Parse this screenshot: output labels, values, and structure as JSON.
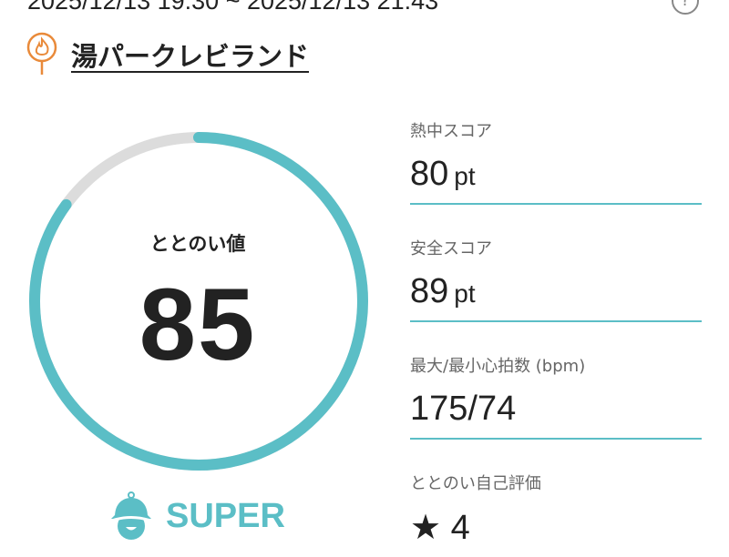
{
  "header": {
    "date_range": "2025/12/13 19:30 ~ 2025/12/13 21:43",
    "help_icon": "question-circle-icon"
  },
  "facility": {
    "name": "湯パークレビランド",
    "icon": "fire-pin-icon",
    "icon_color": "#e98a3a"
  },
  "gauge": {
    "label": "ととのい値",
    "value": "85",
    "percent": 85,
    "color": "#5bbec6",
    "track_color": "#dcdcdc"
  },
  "rank": {
    "label": "SUPER",
    "icon": "sauna-hat-icon",
    "color": "#5bbec6"
  },
  "stats": [
    {
      "label": "熱中スコア",
      "value": "80",
      "unit": "pt"
    },
    {
      "label": "安全スコア",
      "value": "89",
      "unit": "pt"
    },
    {
      "label": "最大/最小心拍数 (bpm)",
      "value": "175/74",
      "unit": ""
    },
    {
      "label": "ととのい自己評価",
      "value": "★ 4",
      "unit": ""
    }
  ]
}
